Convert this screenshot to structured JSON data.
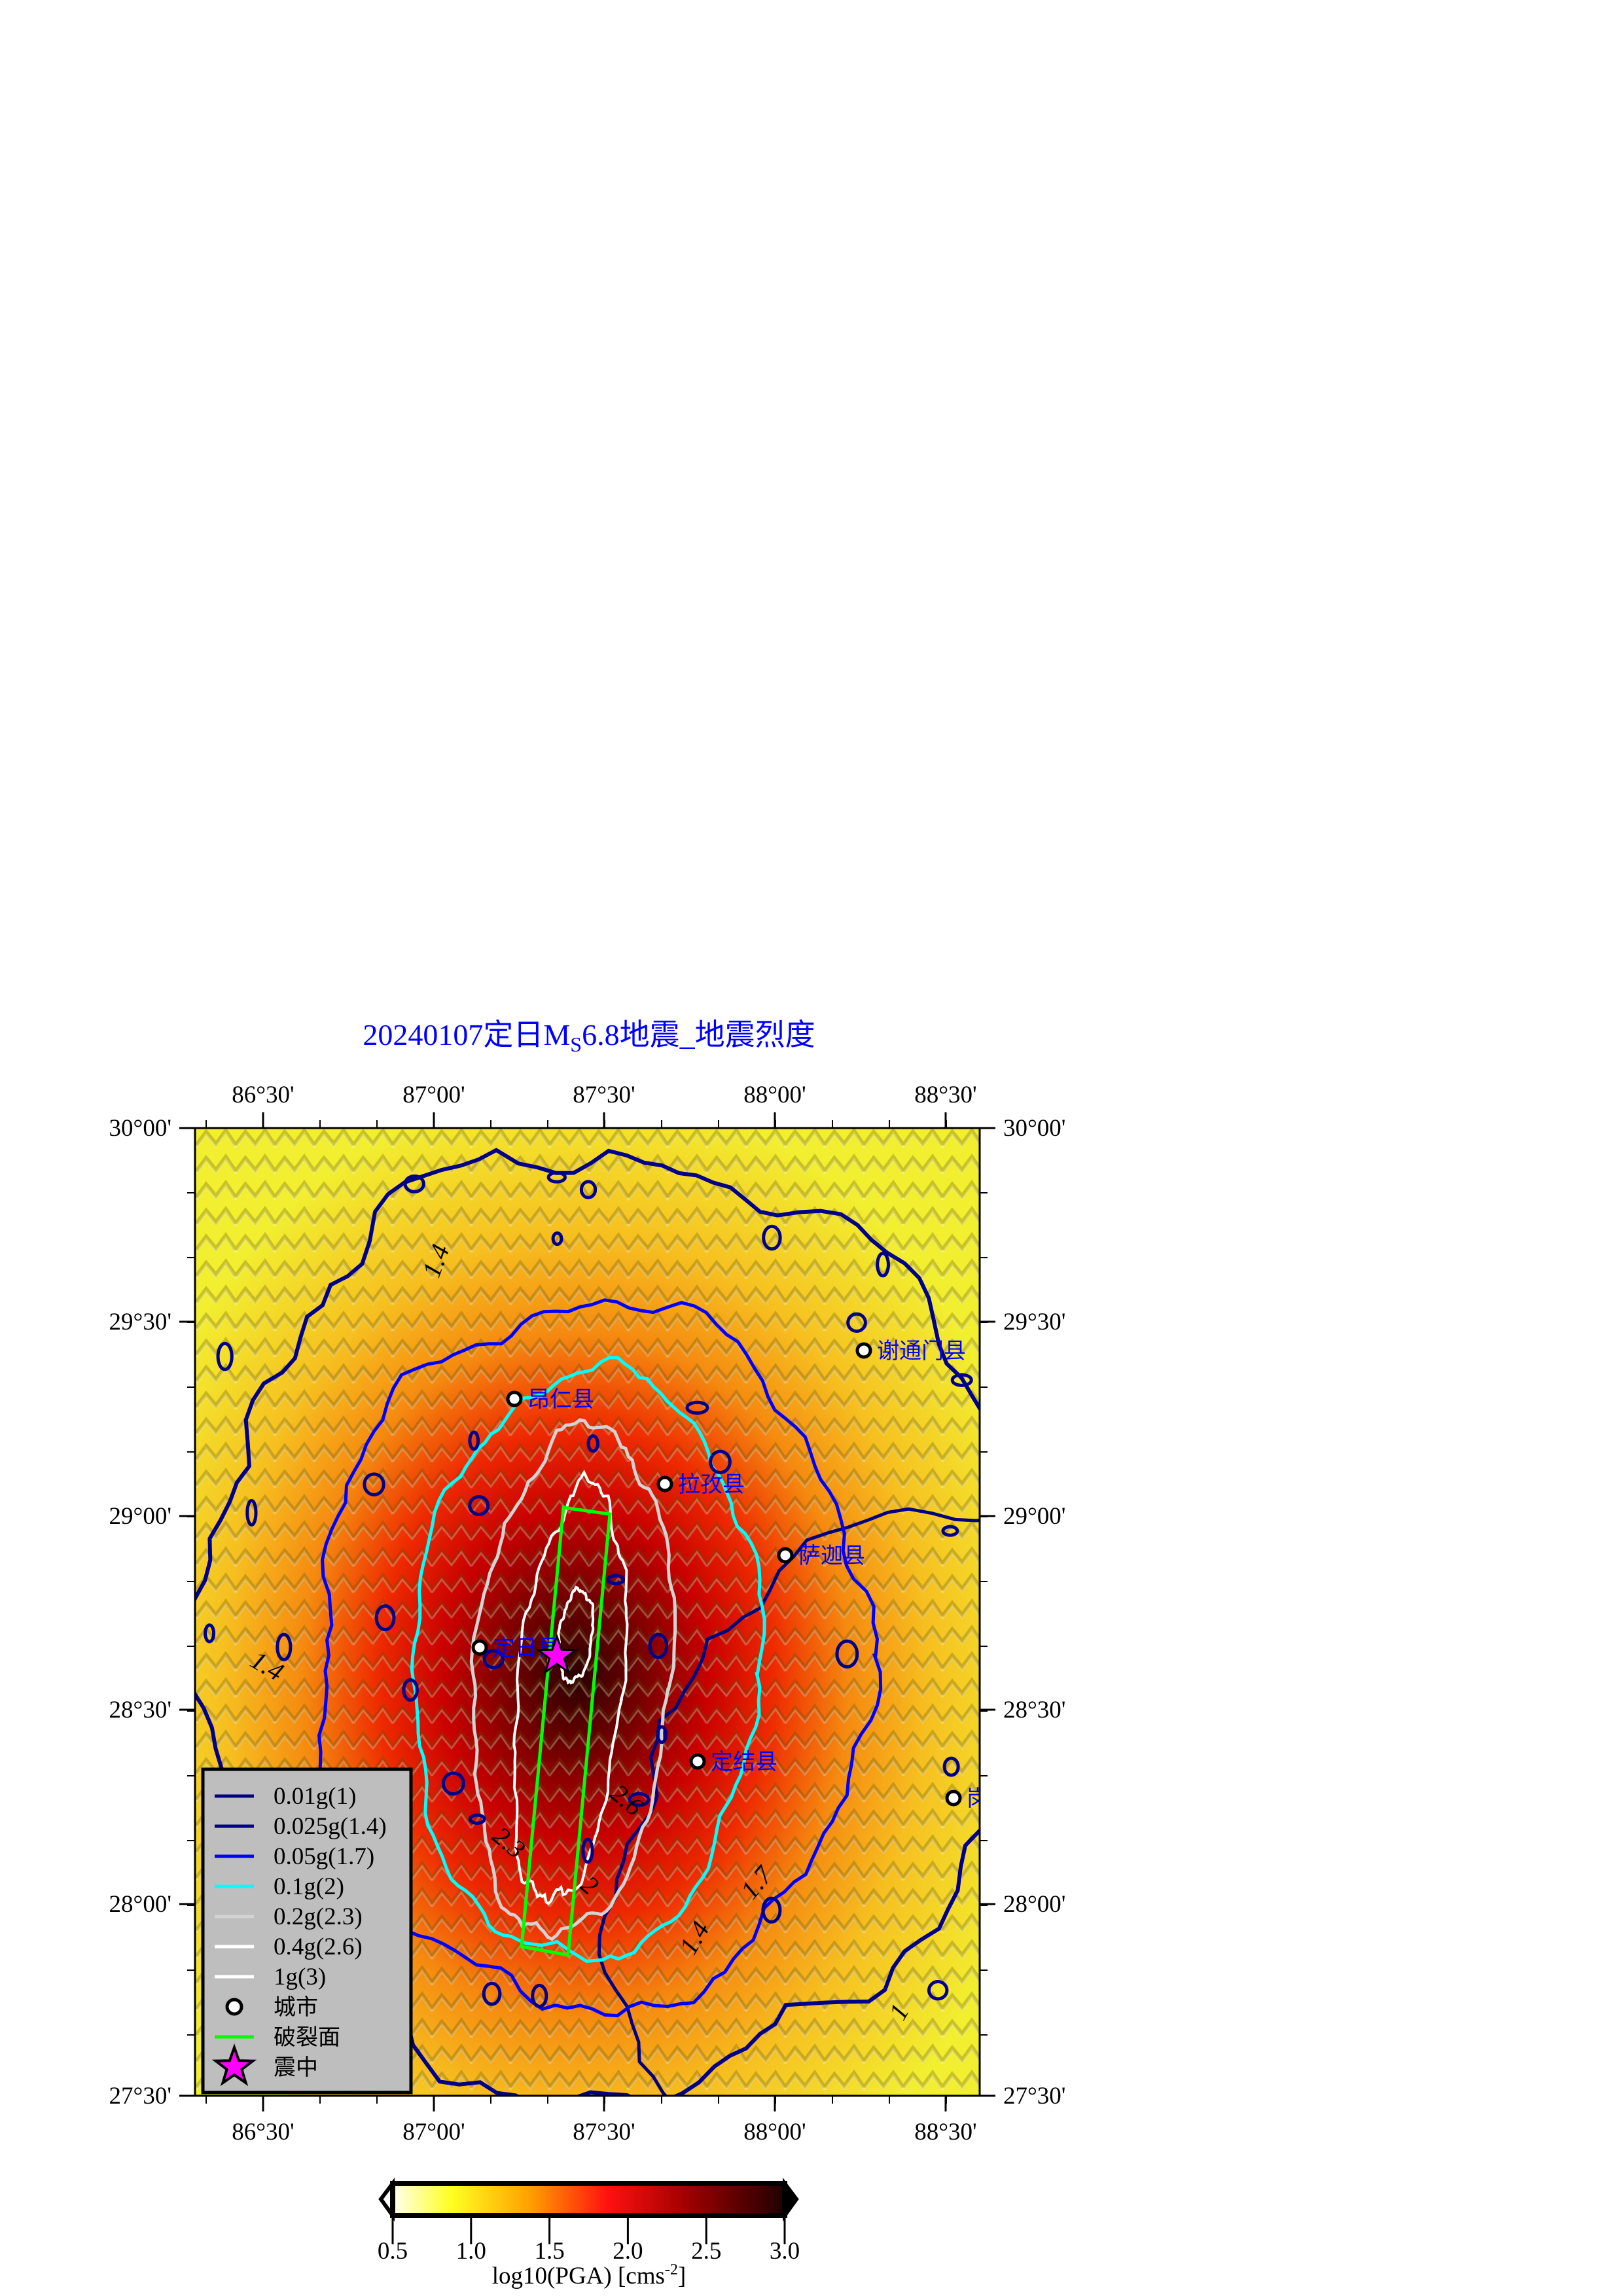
{
  "title": {
    "prefix": "20240107定日M",
    "sub": "S",
    "suffix": "6.8地震_地震烈度"
  },
  "map": {
    "lon_range": [
      "86°18'",
      "88°36'"
    ],
    "lat_range": [
      "27°30'",
      "30°00'"
    ],
    "lon_ticks": [
      "86°30'",
      "87°00'",
      "87°30'",
      "88°00'",
      "88°30'"
    ],
    "lat_ticks": [
      "30°00'",
      "29°30'",
      "29°00'",
      "28°30'",
      "28°00'",
      "27°30'"
    ],
    "cities": [
      {
        "name": "谢通门县"
      },
      {
        "name": "昂仁县"
      },
      {
        "name": "拉孜县"
      },
      {
        "name": "萨迦县"
      },
      {
        "name": "定日县"
      },
      {
        "name": "定结县"
      },
      {
        "name": "岗巴县"
      }
    ],
    "contour_labels": [
      "1.4",
      "1.4",
      "1.4",
      "1.7",
      "2",
      "2.3",
      "2.6",
      "1"
    ],
    "colors": {
      "c1": "#000080",
      "c14": "#00008b",
      "c17": "#0000ff",
      "c2": "#00ffff",
      "c23": "#d3d3d3",
      "c26": "#ffffff",
      "c3": "#ffffff",
      "rupture": "#00ff00",
      "epicenter": "#ff00ff"
    }
  },
  "legend": {
    "items": [
      {
        "label": "0.01g(1)",
        "color": "#000080"
      },
      {
        "label": "0.025g(1.4)",
        "color": "#00008b"
      },
      {
        "label": "0.05g(1.7)",
        "color": "#0000ff"
      },
      {
        "label": "0.1g(2)",
        "color": "#00ffff"
      },
      {
        "label": "0.2g(2.3)",
        "color": "#d3d3d3"
      },
      {
        "label": "0.4g(2.6)",
        "color": "#ffffff"
      },
      {
        "label": "1g(3)",
        "color": "#ffffff"
      },
      {
        "label": "城市",
        "symbol": "circle"
      },
      {
        "label": "破裂面",
        "color": "#00ff00"
      },
      {
        "label": "震中",
        "symbol": "star"
      }
    ]
  },
  "colorbar": {
    "ticks": [
      "0.5",
      "1.0",
      "1.5",
      "2.0",
      "2.5",
      "3.0"
    ],
    "range": [
      0.5,
      3.0
    ],
    "label": "log10(PGA) [cms",
    "label_sup": "-2",
    "label_end": "]"
  }
}
